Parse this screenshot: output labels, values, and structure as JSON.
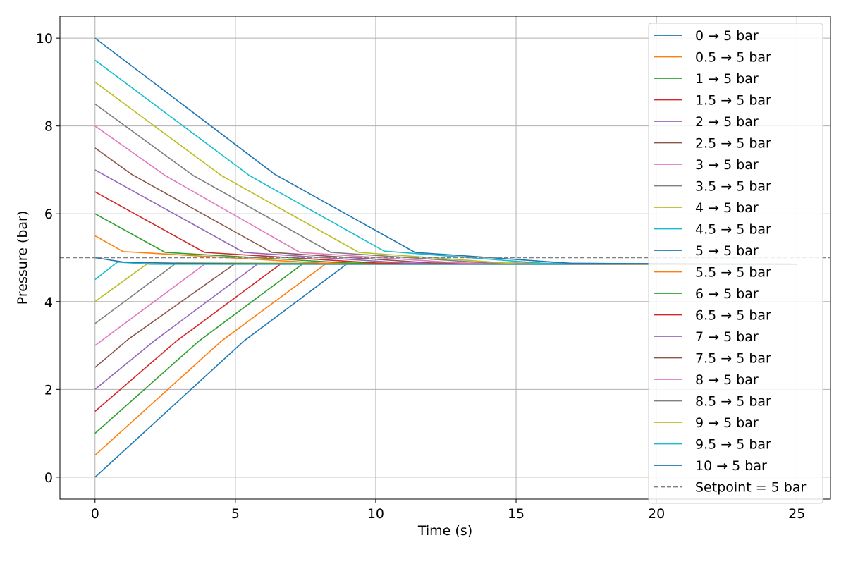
{
  "chart_data": {
    "type": "line",
    "title": "",
    "xlabel": "Time (s)",
    "ylabel": "Pressure (bar)",
    "xlim": [
      -1.25,
      26.2
    ],
    "ylim": [
      -0.5,
      10.5
    ],
    "xticks": [
      0,
      5,
      10,
      15,
      20,
      25
    ],
    "yticks": [
      0,
      2,
      4,
      6,
      8,
      10
    ],
    "grid": true,
    "legend_position": "upper-right",
    "series": [
      {
        "name": "0 → 5 bar",
        "color": "#1f77b4",
        "points": [
          [
            0,
            0
          ],
          [
            5.3,
            3.1
          ],
          [
            9.0,
            4.87
          ],
          [
            25,
            4.85
          ]
        ]
      },
      {
        "name": "0.5 → 5 bar",
        "color": "#ff7f0e",
        "points": [
          [
            0,
            0.5
          ],
          [
            4.5,
            3.1
          ],
          [
            8.2,
            4.85
          ],
          [
            25,
            4.85
          ]
        ]
      },
      {
        "name": "1 → 5 bar",
        "color": "#2ca02c",
        "points": [
          [
            0,
            1.0
          ],
          [
            3.7,
            3.1
          ],
          [
            7.4,
            4.86
          ],
          [
            25,
            4.85
          ]
        ]
      },
      {
        "name": "1.5 → 5 bar",
        "color": "#d62728",
        "points": [
          [
            0,
            1.5
          ],
          [
            2.9,
            3.1
          ],
          [
            6.6,
            4.85
          ],
          [
            25,
            4.85
          ]
        ]
      },
      {
        "name": "2 → 5 bar",
        "color": "#9467bd",
        "points": [
          [
            0,
            2.0
          ],
          [
            2.1,
            3.1
          ],
          [
            5.8,
            4.86
          ],
          [
            25,
            4.85
          ]
        ]
      },
      {
        "name": "2.5 → 5 bar",
        "color": "#8c564b",
        "points": [
          [
            0,
            2.5
          ],
          [
            1.2,
            3.15
          ],
          [
            5.0,
            4.87
          ],
          [
            25,
            4.85
          ]
        ]
      },
      {
        "name": "3 → 5 bar",
        "color": "#e377c2",
        "points": [
          [
            0,
            3.0
          ],
          [
            3.9,
            4.85
          ],
          [
            25,
            4.85
          ]
        ]
      },
      {
        "name": "3.5 → 5 bar",
        "color": "#7f7f7f",
        "points": [
          [
            0,
            3.5
          ],
          [
            2.9,
            4.88
          ],
          [
            25,
            4.85
          ]
        ]
      },
      {
        "name": "4 → 5 bar",
        "color": "#bcbd22",
        "points": [
          [
            0,
            4.0
          ],
          [
            1.9,
            4.88
          ],
          [
            25,
            4.85
          ]
        ]
      },
      {
        "name": "4.5 → 5 bar",
        "color": "#17becf",
        "points": [
          [
            0,
            4.5
          ],
          [
            0.8,
            4.9
          ],
          [
            2,
            4.85
          ],
          [
            25,
            4.85
          ]
        ]
      },
      {
        "name": "5 → 5 bar",
        "color": "#1f77b4",
        "points": [
          [
            0,
            5.0
          ],
          [
            1,
            4.9
          ],
          [
            3,
            4.87
          ],
          [
            6,
            4.86
          ],
          [
            25,
            4.85
          ]
        ]
      },
      {
        "name": "5.5 → 5 bar",
        "color": "#ff7f0e",
        "points": [
          [
            0,
            5.5
          ],
          [
            1,
            5.14
          ],
          [
            8,
            4.88
          ],
          [
            25,
            4.85
          ]
        ]
      },
      {
        "name": "6 → 5 bar",
        "color": "#2ca02c",
        "points": [
          [
            0,
            6.0
          ],
          [
            2.5,
            5.12
          ],
          [
            9,
            4.88
          ],
          [
            25,
            4.85
          ]
        ]
      },
      {
        "name": "6.5 → 5 bar",
        "color": "#d62728",
        "points": [
          [
            0,
            6.5
          ],
          [
            3.9,
            5.12
          ],
          [
            10,
            4.88
          ],
          [
            25,
            4.85
          ]
        ]
      },
      {
        "name": "7 → 5 bar",
        "color": "#9467bd",
        "points": [
          [
            0,
            7.0
          ],
          [
            5.3,
            5.12
          ],
          [
            11,
            4.88
          ],
          [
            25,
            4.85
          ]
        ]
      },
      {
        "name": "7.5 → 5 bar",
        "color": "#8c564b",
        "points": [
          [
            0,
            7.5
          ],
          [
            1.3,
            6.9
          ],
          [
            6.3,
            5.12
          ],
          [
            12,
            4.88
          ],
          [
            25,
            4.85
          ]
        ]
      },
      {
        "name": "8 → 5 bar",
        "color": "#e377c2",
        "points": [
          [
            0,
            8.0
          ],
          [
            2.5,
            6.87
          ],
          [
            7.3,
            5.12
          ],
          [
            13,
            4.88
          ],
          [
            25,
            4.85
          ]
        ]
      },
      {
        "name": "8.5 → 5 bar",
        "color": "#7f7f7f",
        "points": [
          [
            0,
            8.5
          ],
          [
            3.5,
            6.87
          ],
          [
            8.4,
            5.12
          ],
          [
            14,
            4.88
          ],
          [
            25,
            4.85
          ]
        ]
      },
      {
        "name": "9 → 5 bar",
        "color": "#bcbd22",
        "points": [
          [
            0,
            9.0
          ],
          [
            4.5,
            6.87
          ],
          [
            9.4,
            5.12
          ],
          [
            15,
            4.86
          ],
          [
            25,
            4.85
          ]
        ]
      },
      {
        "name": "9.5 → 5 bar",
        "color": "#17becf",
        "points": [
          [
            0,
            9.5
          ],
          [
            5.5,
            6.87
          ],
          [
            10.3,
            5.15
          ],
          [
            16,
            4.87
          ],
          [
            25,
            4.85
          ]
        ]
      },
      {
        "name": "10 → 5 bar",
        "color": "#1f77b4",
        "points": [
          [
            0,
            10.0
          ],
          [
            6.4,
            6.9
          ],
          [
            11.4,
            5.12
          ],
          [
            17,
            4.87
          ],
          [
            25,
            4.85
          ]
        ]
      }
    ],
    "reference_line": {
      "name": "Setpoint = 5 bar",
      "y": 5,
      "color": "#808080",
      "style": "dashed"
    }
  }
}
